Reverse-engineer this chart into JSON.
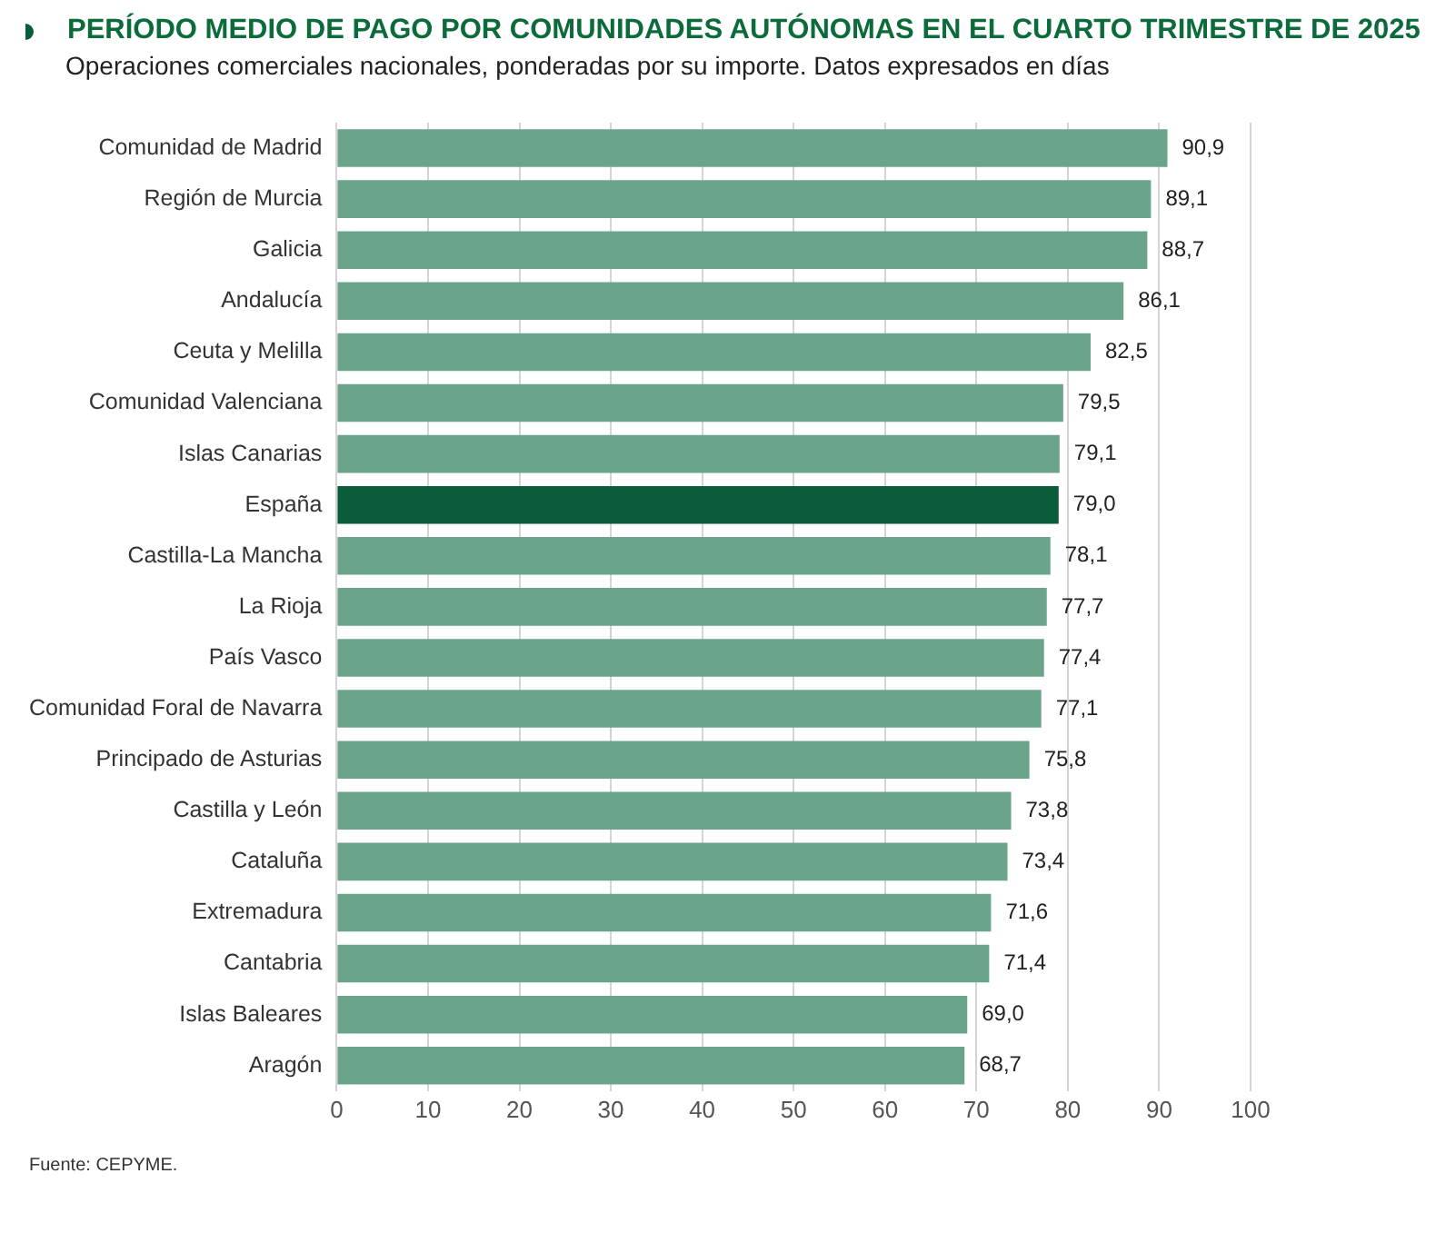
{
  "chart_data": {
    "type": "bar",
    "orientation": "horizontal",
    "title": "PERÍODO MEDIO DE PAGO POR COMUNIDADES AUTÓNOMAS EN EL CUARTO TRIMESTRE DE 2025",
    "subtitle": "Operaciones comerciales nacionales, ponderadas por su importe. Datos expresados en días",
    "categories": [
      "Comunidad de Madrid",
      "Región de Murcia",
      "Galicia",
      "Andalucía",
      "Ceuta y Melilla",
      "Comunidad Valenciana",
      "Islas Canarias",
      "España",
      "Castilla-La Mancha",
      "La Rioja",
      "País Vasco",
      "Comunidad Foral de Navarra",
      "Principado de Asturias",
      "Castilla y León",
      "Cataluña",
      "Extremadura",
      "Cantabria",
      "Islas Baleares",
      "Aragón"
    ],
    "values": [
      90.9,
      89.1,
      88.7,
      86.1,
      82.5,
      79.5,
      79.1,
      79.0,
      78.1,
      77.7,
      77.4,
      77.1,
      75.8,
      73.8,
      73.4,
      71.6,
      71.4,
      69.0,
      68.7
    ],
    "value_labels": [
      "90,9",
      "89,1",
      "88,7",
      "86,1",
      "82,5",
      "79,5",
      "79,1",
      "79,0",
      "78,1",
      "77,7",
      "77,4",
      "77,1",
      "75,8",
      "73,8",
      "73,4",
      "71,6",
      "71,4",
      "69,0",
      "68,7"
    ],
    "colors": [
      "#6aa58b",
      "#6aa58b",
      "#6aa58b",
      "#6aa58b",
      "#6aa58b",
      "#6aa58b",
      "#6aa58b",
      "#0b5c3b",
      "#6aa58b",
      "#6aa58b",
      "#6aa58b",
      "#6aa58b",
      "#6aa58b",
      "#6aa58b",
      "#6aa58b",
      "#6aa58b",
      "#6aa58b",
      "#6aa58b",
      "#6aa58b"
    ],
    "xlim": [
      0,
      100
    ],
    "xticks": [
      0,
      10,
      20,
      30,
      40,
      50,
      60,
      70,
      80,
      90,
      100
    ],
    "grid": "x",
    "annotations": [
      "Fuente: CEPYME."
    ]
  }
}
